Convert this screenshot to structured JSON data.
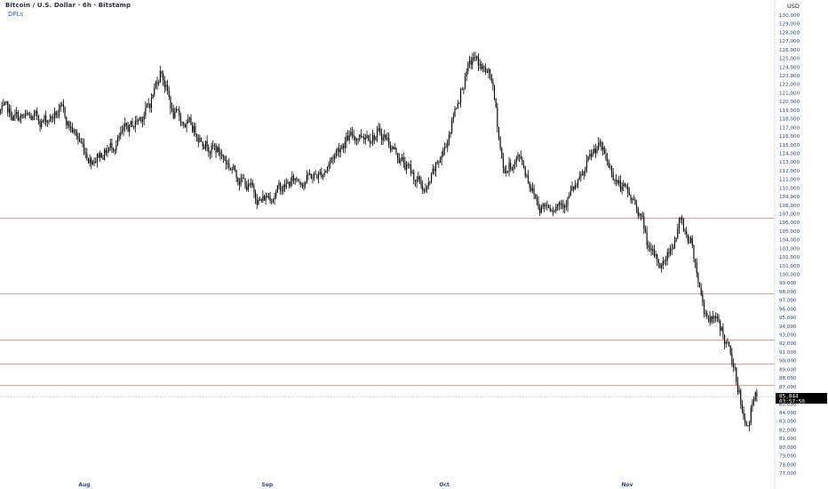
{
  "header": {
    "title": "Bitcoin / U.S. Dollar · 6h · Bitstamp",
    "indicator": "DPLs"
  },
  "colors": {
    "candle": "#000000",
    "level_line": "#e57373",
    "last_price_line": "#9e9e9e",
    "axis_text": "#2a4a8a",
    "price_label_bg": "#000000"
  },
  "chart_data": {
    "type": "line",
    "title": "Bitcoin / U.S. Dollar · 6h · Bitstamp",
    "currency": "USD",
    "ylim": [
      77000,
      131000
    ],
    "ytick_labels": [
      "77,000",
      "78,000",
      "79,000",
      "80,000",
      "81,000",
      "82,000",
      "83,000",
      "84,000",
      "85,000",
      "86,000",
      "87,000",
      "88,000",
      "89,000",
      "90,000",
      "91,000",
      "92,000",
      "93,000",
      "94,000",
      "95,000",
      "96,000",
      "97,000",
      "98,000",
      "99,000",
      "100,000",
      "101,000",
      "102,000",
      "103,000",
      "104,000",
      "105,000",
      "106,000",
      "107,000",
      "108,000",
      "109,000",
      "110,000",
      "111,000",
      "112,000",
      "113,000",
      "114,000",
      "115,000",
      "116,000",
      "117,000",
      "118,000",
      "119,000",
      "120,000",
      "121,000",
      "122,000",
      "123,000",
      "124,000",
      "125,000",
      "126,000",
      "127,000",
      "128,000",
      "129,000",
      "130,000"
    ],
    "x_labels": [
      {
        "label": "Aug",
        "date": "2025-08-01"
      },
      {
        "label": "Sep",
        "date": "2025-09-01"
      },
      {
        "label": "Oct",
        "date": "2025-10-01"
      },
      {
        "label": "Nov",
        "date": "2025-11-01"
      }
    ],
    "price_path": [
      {
        "date": "2025-07-17",
        "price": 119000
      },
      {
        "date": "2025-07-21",
        "price": 118000
      },
      {
        "date": "2025-07-25",
        "price": 117800
      },
      {
        "date": "2025-07-28",
        "price": 118800
      },
      {
        "date": "2025-08-02",
        "price": 113500
      },
      {
        "date": "2025-08-05",
        "price": 114500
      },
      {
        "date": "2025-08-09",
        "price": 117000
      },
      {
        "date": "2025-08-12",
        "price": 119500
      },
      {
        "date": "2025-08-14",
        "price": 124000
      },
      {
        "date": "2025-08-16",
        "price": 118500
      },
      {
        "date": "2025-08-20",
        "price": 116500
      },
      {
        "date": "2025-08-24",
        "price": 114000
      },
      {
        "date": "2025-08-27",
        "price": 111500
      },
      {
        "date": "2025-08-31",
        "price": 108500
      },
      {
        "date": "2025-09-02",
        "price": 109500
      },
      {
        "date": "2025-09-06",
        "price": 111000
      },
      {
        "date": "2025-09-10",
        "price": 111500
      },
      {
        "date": "2025-09-14",
        "price": 115500
      },
      {
        "date": "2025-09-18",
        "price": 116500
      },
      {
        "date": "2025-09-21",
        "price": 116000
      },
      {
        "date": "2025-09-25",
        "price": 112000
      },
      {
        "date": "2025-09-28",
        "price": 109500
      },
      {
        "date": "2025-10-01",
        "price": 114500
      },
      {
        "date": "2025-10-04",
        "price": 122000
      },
      {
        "date": "2025-10-06",
        "price": 125000
      },
      {
        "date": "2025-10-09",
        "price": 122500
      },
      {
        "date": "2025-10-11",
        "price": 112000
      },
      {
        "date": "2025-10-14",
        "price": 113500
      },
      {
        "date": "2025-10-17",
        "price": 108000
      },
      {
        "date": "2025-10-21",
        "price": 108500
      },
      {
        "date": "2025-10-24",
        "price": 110500
      },
      {
        "date": "2025-10-27",
        "price": 115000
      },
      {
        "date": "2025-10-31",
        "price": 110000
      },
      {
        "date": "2025-11-03",
        "price": 107500
      },
      {
        "date": "2025-11-05",
        "price": 102000
      },
      {
        "date": "2025-11-07",
        "price": 101000
      },
      {
        "date": "2025-11-10",
        "price": 106000
      },
      {
        "date": "2025-11-12",
        "price": 103500
      },
      {
        "date": "2025-11-14",
        "price": 96000
      },
      {
        "date": "2025-11-17",
        "price": 93500
      },
      {
        "date": "2025-11-18",
        "price": 91500
      },
      {
        "date": "2025-11-20",
        "price": 86500
      },
      {
        "date": "2025-11-21",
        "price": 82000
      },
      {
        "date": "2025-11-22",
        "price": 84500
      },
      {
        "date": "2025-11-23",
        "price": 85844
      }
    ],
    "level_lines": [
      106500,
      97800,
      92400,
      89700,
      87200
    ],
    "last_price": "85,844",
    "countdown": "03:57:50"
  }
}
